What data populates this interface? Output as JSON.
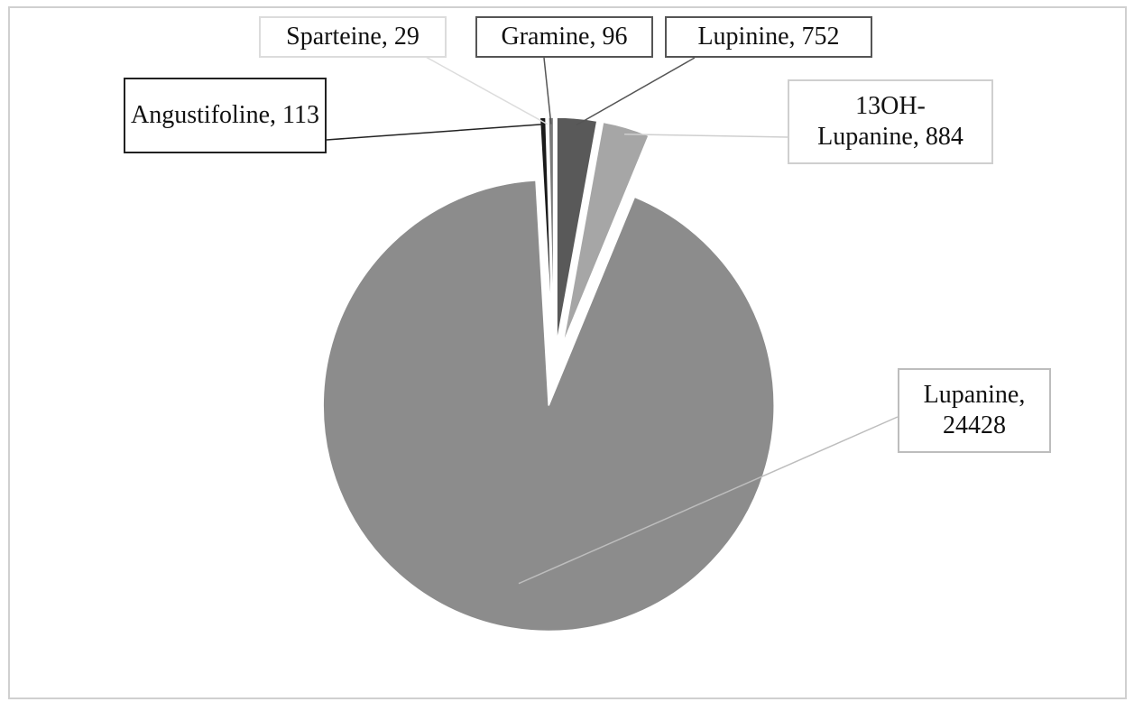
{
  "chart_data": {
    "type": "pie",
    "categories": [
      "Lupinine",
      "13OH-Lupanine",
      "Lupanine",
      "Angustifoline",
      "Sparteine",
      "Gramine"
    ],
    "values": [
      752,
      884,
      24428,
      113,
      29,
      96
    ],
    "value_labels": [
      "Lupinine, 752",
      "13OH-Lupanine, 884",
      "Lupanine, 24428",
      "Angustifoline, 113",
      "Sparteine, 29",
      "Gramine, 96"
    ],
    "colors": [
      "#595959",
      "#a6a6a6",
      "#8c8c8c",
      "#1a1a1a",
      "#e3e3e3",
      "#7a7a7a"
    ]
  }
}
